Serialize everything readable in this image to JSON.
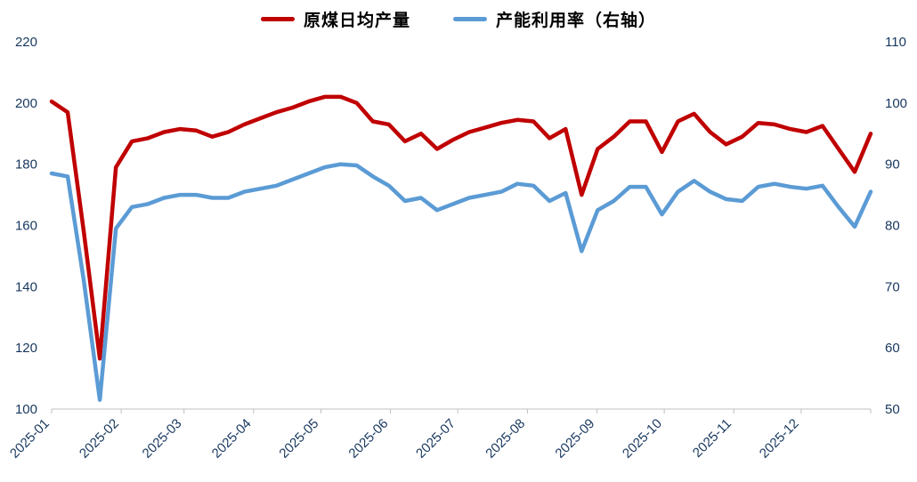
{
  "colors": {
    "red_series": "#C00000",
    "blue_series": "#5B9BD5",
    "axis_text": "#17375E",
    "axis_line": "#BFBFBF",
    "background": "#FFFFFF"
  },
  "chart_data": {
    "type": "line",
    "title": "",
    "grid": false,
    "legend_position": "top-center",
    "x_tick_labels": [
      "2025-01",
      "2025-02",
      "2025-03",
      "2025-04",
      "2025-05",
      "2025-06",
      "2025-07",
      "2025-08",
      "2025-09",
      "2025-10",
      "2025-11",
      "2025-12"
    ],
    "x_tick_day_of_year": [
      0,
      31,
      59,
      90,
      120,
      151,
      181,
      212,
      243,
      273,
      304,
      334
    ],
    "days_in_year": 365,
    "left_axis": {
      "min": 100,
      "max": 220,
      "ticks": [
        220,
        200,
        180,
        160,
        140,
        120,
        100
      ]
    },
    "right_axis": {
      "min": 50,
      "max": 110,
      "ticks": [
        110,
        100,
        90,
        80,
        70,
        60,
        50
      ]
    },
    "series": [
      {
        "name": "原煤日均产量",
        "axis": "left",
        "color": "#C00000",
        "values": [
          200.5,
          197,
          158,
          116.5,
          179,
          187.5,
          188.5,
          190.5,
          191.5,
          191,
          189,
          190.5,
          193,
          195,
          197,
          198.5,
          200.5,
          202,
          202,
          200,
          194,
          193,
          187.5,
          190,
          185,
          188,
          190.5,
          192,
          193.5,
          194.5,
          194,
          188.5,
          191.5,
          170,
          185,
          189,
          194,
          194,
          184,
          194,
          196.5,
          190.5,
          186.5,
          189,
          193.5,
          193,
          191.5,
          190.5,
          192.5,
          185,
          177.5,
          190
        ]
      },
      {
        "name": "产能利用率（右轴）",
        "axis": "right",
        "color": "#5B9BD5",
        "values": [
          88.5,
          88,
          71,
          51.5,
          79.5,
          83,
          83.5,
          84.5,
          85,
          85,
          84.5,
          84.5,
          85.5,
          86,
          86.5,
          87.5,
          88.5,
          89.5,
          90,
          89.8,
          88,
          86.5,
          84,
          84.5,
          82.5,
          83.5,
          84.5,
          85,
          85.5,
          86.8,
          86.5,
          84,
          85.3,
          75.8,
          82.5,
          84,
          86.3,
          86.3,
          81.8,
          85.5,
          87.3,
          85.5,
          84.3,
          84,
          86.3,
          86.8,
          86.3,
          86,
          86.5,
          83,
          79.8,
          85.5
        ]
      }
    ]
  }
}
